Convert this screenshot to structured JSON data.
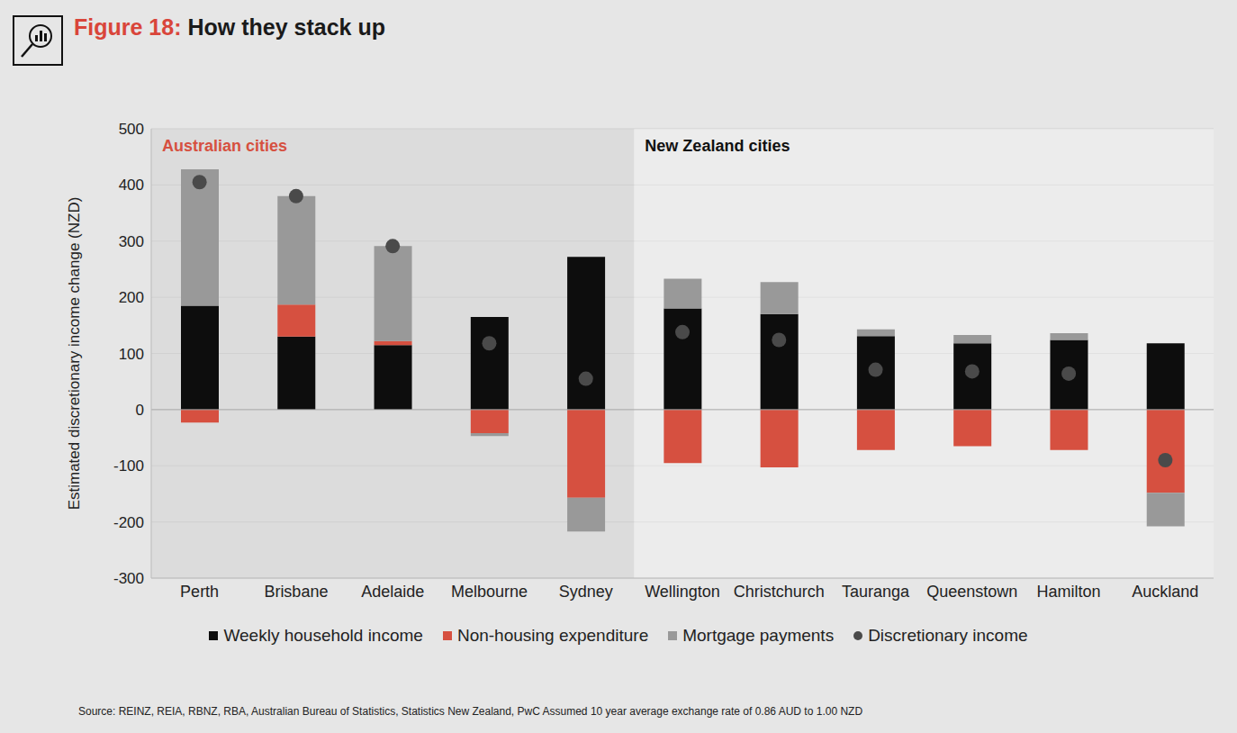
{
  "chart_data": {
    "type": "bar",
    "title": "Figure 18: How they stack up",
    "y_label": "Estimated discretionary income change (NZD)",
    "source": "Source: REINZ, REIA, RBNZ, RBA, Australian Bureau of Statistics, Statistics New Zealand, PwC Assumed 10 year average exchange rate of 0.86 AUD to 1.00 NZD",
    "categories": [
      "Perth",
      "Brisbane",
      "Adelaide",
      "Melbourne",
      "Sydney",
      "Wellington",
      "Christchurch",
      "Tauranga",
      "Queenstown",
      "Hamilton",
      "Auckland"
    ],
    "series": [
      {
        "name": "Weekly household income",
        "type": "bar",
        "color": "#0d0d0d",
        "values": [
          185,
          130,
          115,
          165,
          272,
          180,
          170,
          131,
          118,
          124,
          118
        ]
      },
      {
        "name": "Non-housing expenditure",
        "type": "bar",
        "color": "#d65040",
        "values": [
          -23,
          57,
          7,
          -42,
          -157,
          -95,
          -103,
          -72,
          -65,
          -72,
          -148
        ]
      },
      {
        "name": "Mortgage payments",
        "type": "bar",
        "color": "#999999",
        "values": [
          243,
          193,
          169,
          -5,
          -60,
          53,
          57,
          12,
          15,
          12,
          -60
        ]
      },
      {
        "name": "Discretionary income",
        "type": "scatter",
        "color": "#4a4a4a",
        "values": [
          405,
          380,
          291,
          118,
          55,
          138,
          124,
          71,
          68,
          64,
          -90
        ]
      }
    ],
    "regions": [
      {
        "label": "Australian cities",
        "from": "Perth",
        "to": "Sydney",
        "color": "#d2d2d2",
        "label_color": "#d65040"
      },
      {
        "label": "New Zealand cities",
        "from": "Wellington",
        "to": "Auckland",
        "color": "#ececec",
        "label_color": "#111111"
      }
    ],
    "stacked": true,
    "ylim": [
      -300,
      500
    ],
    "yticks": [
      -300,
      -200,
      -100,
      0,
      100,
      200,
      300,
      400,
      500
    ],
    "grid": true
  }
}
